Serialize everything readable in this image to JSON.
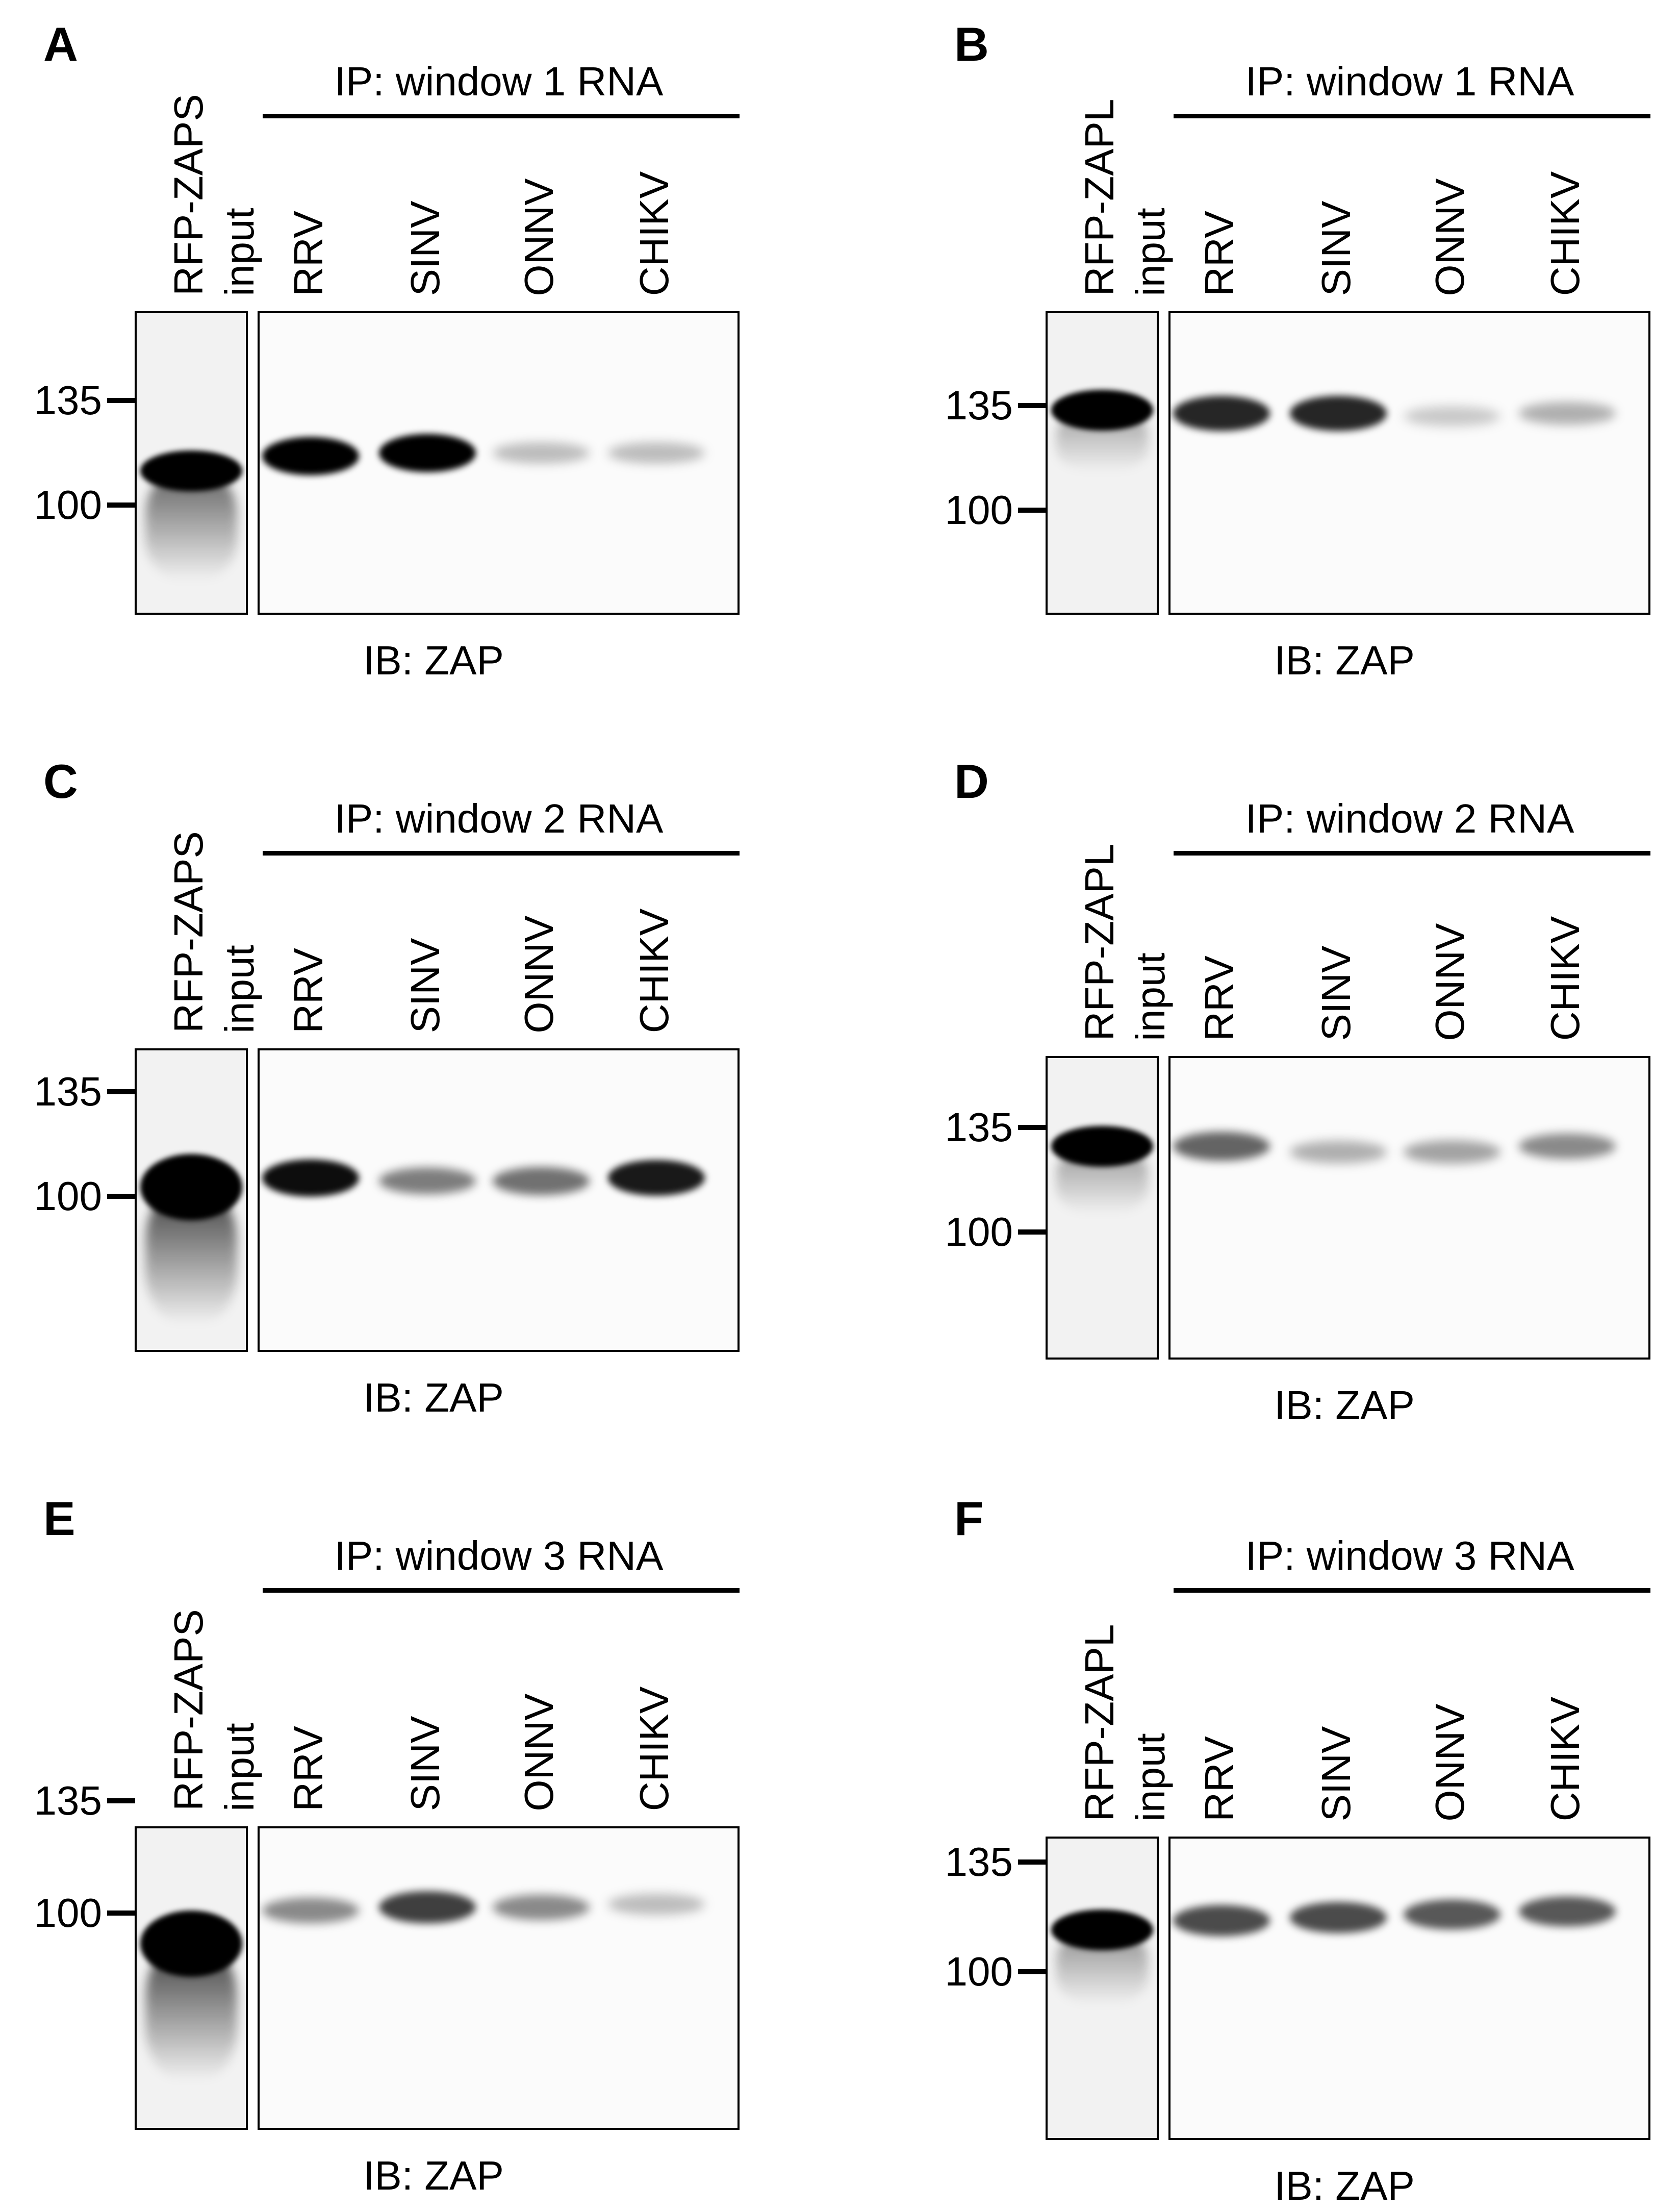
{
  "panels": [
    {
      "label": "A",
      "input_label": "RFP-ZAPS",
      "input_sublabel": "input",
      "ip_title": "IP: window 1 RNA",
      "lanes": [
        "RRV",
        "SINV",
        "ONNV",
        "CHIKV"
      ],
      "markers": [
        "135",
        "100"
      ],
      "ib_label": "IB: ZAP",
      "input_band": {
        "y": 0.52,
        "intensity": 1.0,
        "smear": 0.8
      },
      "lane_bands": [
        {
          "y": 0.47,
          "intensity": 1.0
        },
        {
          "y": 0.46,
          "intensity": 1.0
        },
        {
          "y": 0.46,
          "intensity": 0.25
        },
        {
          "y": 0.46,
          "intensity": 0.25
        }
      ]
    },
    {
      "label": "B",
      "input_label": "RFP-ZAPL",
      "input_sublabel": "input",
      "ip_title": "IP: window 1 RNA",
      "lanes": [
        "RRV",
        "SINV",
        "ONNV",
        "CHIKV"
      ],
      "markers": [
        "135",
        "100"
      ],
      "ib_label": "IB: ZAP",
      "input_band": {
        "y": 0.32,
        "intensity": 1.0,
        "smear": 0.45
      },
      "lane_bands": [
        {
          "y": 0.33,
          "intensity": 0.85
        },
        {
          "y": 0.33,
          "intensity": 0.85
        },
        {
          "y": 0.34,
          "intensity": 0.2
        },
        {
          "y": 0.33,
          "intensity": 0.3
        }
      ]
    },
    {
      "label": "C",
      "input_label": "RFP-ZAPS",
      "input_sublabel": "input",
      "ip_title": "IP: window 2 RNA",
      "lanes": [
        "RRV",
        "SINV",
        "ONNV",
        "CHIKV"
      ],
      "markers": [
        "135",
        "100"
      ],
      "ib_label": "IB: ZAP",
      "input_band": {
        "y": 0.45,
        "intensity": 1.0,
        "smear": 1.0
      },
      "lane_bands": [
        {
          "y": 0.42,
          "intensity": 0.95
        },
        {
          "y": 0.43,
          "intensity": 0.5
        },
        {
          "y": 0.43,
          "intensity": 0.55
        },
        {
          "y": 0.42,
          "intensity": 0.9
        }
      ]
    },
    {
      "label": "D",
      "input_label": "RFP-ZAPL",
      "input_sublabel": "input",
      "ip_title": "IP: window 2 RNA",
      "lanes": [
        "RRV",
        "SINV",
        "ONNV",
        "CHIKV"
      ],
      "markers": [
        "135",
        "100"
      ],
      "ib_label": "IB: ZAP",
      "input_band": {
        "y": 0.29,
        "intensity": 1.0,
        "smear": 0.5
      },
      "lane_bands": [
        {
          "y": 0.29,
          "intensity": 0.6
        },
        {
          "y": 0.31,
          "intensity": 0.3
        },
        {
          "y": 0.31,
          "intensity": 0.35
        },
        {
          "y": 0.29,
          "intensity": 0.45
        }
      ]
    },
    {
      "label": "E",
      "input_label": "RFP-ZAPS",
      "input_sublabel": "input",
      "ip_title": "IP: window 3 RNA",
      "lanes": [
        "RRV",
        "SINV",
        "ONNV",
        "CHIKV"
      ],
      "markers": [
        "135",
        "100"
      ],
      "ib_label": "IB: ZAP",
      "input_band": {
        "y": 0.38,
        "intensity": 1.0,
        "smear": 1.0
      },
      "lane_bands": [
        {
          "y": 0.27,
          "intensity": 0.45
        },
        {
          "y": 0.26,
          "intensity": 0.75
        },
        {
          "y": 0.26,
          "intensity": 0.45
        },
        {
          "y": 0.25,
          "intensity": 0.25
        }
      ]
    },
    {
      "label": "F",
      "input_label": "RFP-ZAPL",
      "input_sublabel": "input",
      "ip_title": "IP: window 3 RNA",
      "lanes": [
        "RRV",
        "SINV",
        "ONNV",
        "CHIKV"
      ],
      "markers": [
        "135",
        "100"
      ],
      "ib_label": "IB: ZAP",
      "input_band": {
        "y": 0.3,
        "intensity": 1.0,
        "smear": 0.55
      },
      "lane_bands": [
        {
          "y": 0.27,
          "intensity": 0.7
        },
        {
          "y": 0.26,
          "intensity": 0.7
        },
        {
          "y": 0.25,
          "intensity": 0.65
        },
        {
          "y": 0.24,
          "intensity": 0.65
        }
      ]
    }
  ],
  "colors": {
    "band": "#000000",
    "frame": "#000000",
    "input_bg": "#f2f2f2",
    "ip_bg": "#fbfbfb"
  }
}
